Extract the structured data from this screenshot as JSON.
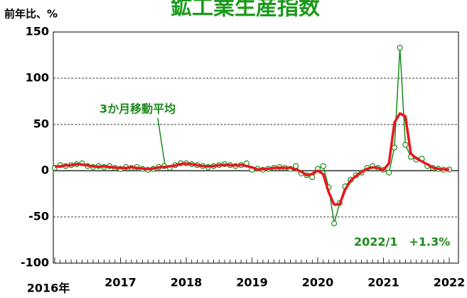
{
  "chart_data": {
    "type": "line",
    "title": "鉱工業生産指数",
    "y_label": "前年比、%",
    "annotation": "3か月移動平均",
    "last_label": "2022/1　+1.3%",
    "categories": [
      "2016年",
      null,
      null,
      null,
      null,
      null,
      null,
      null,
      null,
      null,
      null,
      null,
      "2017",
      null,
      null,
      null,
      null,
      null,
      null,
      null,
      null,
      null,
      null,
      null,
      "2018",
      null,
      null,
      null,
      null,
      null,
      null,
      null,
      null,
      null,
      null,
      null,
      "2019",
      null,
      null,
      null,
      null,
      null,
      null,
      null,
      null,
      null,
      null,
      null,
      "2020",
      null,
      null,
      null,
      null,
      null,
      null,
      null,
      null,
      null,
      null,
      null,
      "2021",
      null,
      null,
      null,
      null,
      null,
      null,
      null,
      null,
      null,
      null,
      null,
      "2022"
    ],
    "series": [
      {
        "name": "前年比",
        "color": "#1a8a1a",
        "marker": "circle",
        "values": [
          3,
          6,
          5,
          6,
          7,
          8,
          5,
          4,
          5,
          4,
          5,
          3,
          2,
          4,
          3,
          4,
          2,
          1,
          2,
          4,
          5,
          3,
          6,
          8,
          8,
          7,
          6,
          5,
          4,
          5,
          6,
          7,
          6,
          5,
          6,
          8,
          1,
          2,
          1,
          2,
          3,
          4,
          3,
          2,
          5,
          -3,
          -5,
          -7,
          2,
          5,
          -18,
          -57,
          -35,
          -17,
          -10,
          -5,
          -2,
          3,
          5,
          3,
          1,
          -2,
          25,
          133,
          28,
          15,
          12,
          13,
          5,
          3,
          2,
          1,
          1.3
        ]
      },
      {
        "name": "3か月移動平均",
        "color": "#e8161b",
        "values": [
          4.5,
          4.7,
          5.7,
          6,
          7,
          6.7,
          5.7,
          4.7,
          4.3,
          4.7,
          4,
          3.3,
          3,
          3,
          3.7,
          3,
          2.3,
          1.7,
          2.3,
          3.7,
          4,
          4.7,
          5.7,
          7.3,
          7.7,
          7,
          6,
          5,
          4.7,
          5,
          6,
          6.3,
          6,
          5.7,
          6.3,
          5,
          3.7,
          1.3,
          1.7,
          2,
          3,
          3.3,
          3,
          3.3,
          1.3,
          -1,
          -5,
          -3.3,
          0,
          -3.7,
          -23.3,
          -36.7,
          -36.3,
          -20.7,
          -10.7,
          -5.7,
          -1.3,
          2,
          3.7,
          3,
          0.7,
          8,
          52,
          62,
          58.7,
          18.3,
          13.3,
          10,
          7,
          3.3,
          2,
          1.4,
          1.2
        ]
      }
    ],
    "ylim": [
      -100,
      150
    ],
    "yticks": [
      -100,
      -50,
      0,
      50,
      100,
      150
    ],
    "grid": true
  }
}
